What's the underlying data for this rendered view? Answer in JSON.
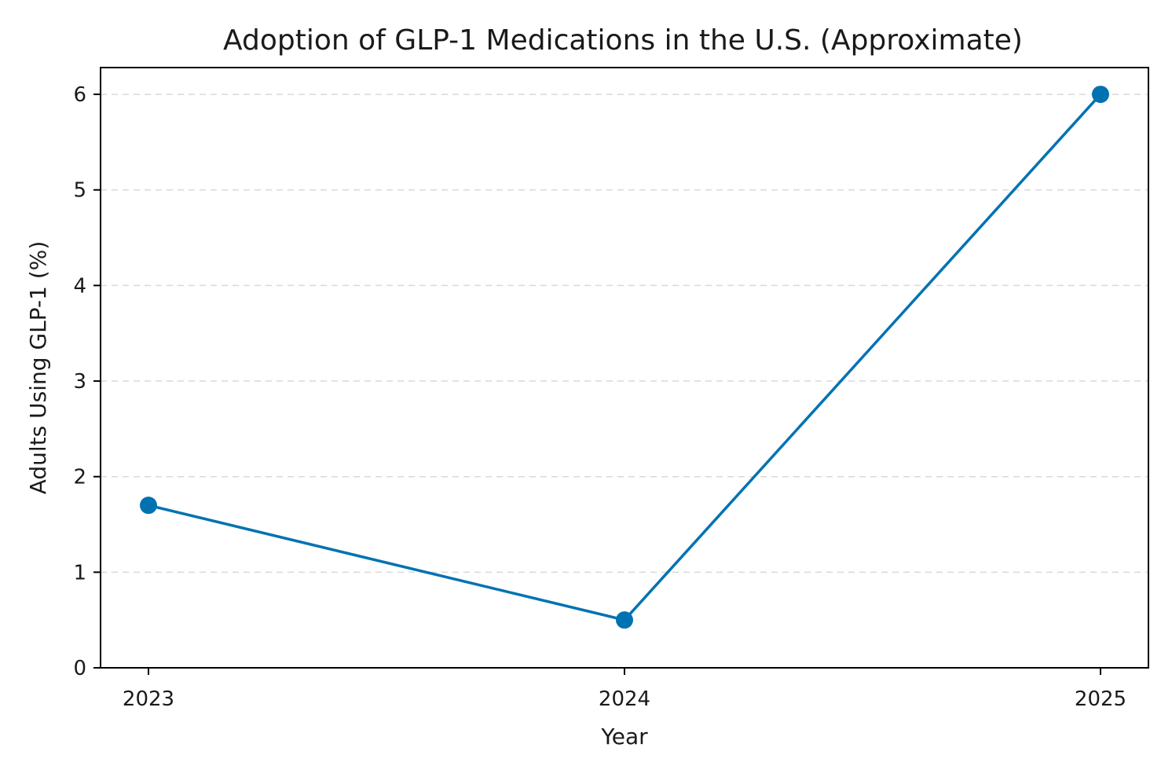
{
  "chart_data": {
    "type": "line",
    "title": "Adoption of GLP-1 Medications in the U.S. (Approximate)",
    "xlabel": "Year",
    "ylabel": "Adults Using GLP-1 (%)",
    "categories": [
      "2023",
      "2024",
      "2025"
    ],
    "series": [
      {
        "name": "Adults Using GLP-1 (%)",
        "values": [
          1.7,
          0.5,
          6.0
        ],
        "color": "#0072b2"
      }
    ],
    "ylim": [
      0,
      6.28
    ],
    "yticks": [
      0,
      1,
      2,
      3,
      4,
      5,
      6
    ],
    "ytick_labels": [
      "0",
      "1",
      "2",
      "3",
      "4",
      "5",
      "6"
    ],
    "grid": "horizontal-dashed",
    "grid_color": "#d9d9d9",
    "axis_color": "#000000",
    "background": "#ffffff"
  }
}
